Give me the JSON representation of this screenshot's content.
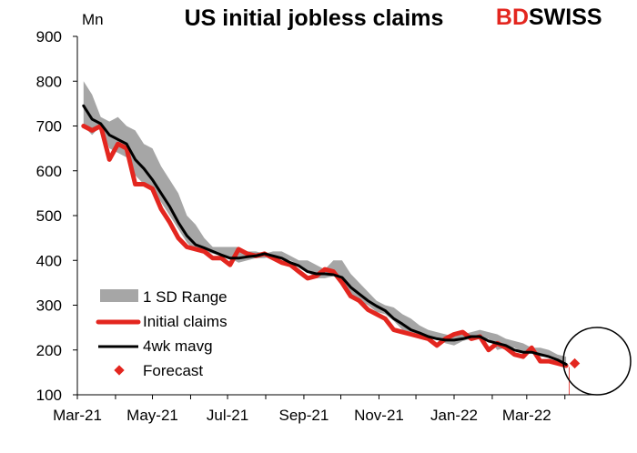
{
  "chart_data": {
    "type": "line",
    "title": "US initial jobless claims",
    "ylabel": "Mn",
    "ylim": [
      100,
      900
    ],
    "y_ticks": [
      100,
      200,
      300,
      400,
      500,
      600,
      700,
      800,
      900
    ],
    "x_tick_labels": [
      "Mar-21",
      "May-21",
      "Jul-21",
      "Sep-21",
      "Nov-21",
      "Jan-22",
      "Mar-22"
    ],
    "x_tick_dates": [
      "2021-03-01",
      "2021-05-01",
      "2021-07-01",
      "2021-09-01",
      "2021-11-01",
      "2022-01-01",
      "2022-03-01"
    ],
    "x_range": [
      "2021-03-01",
      "2022-04-30"
    ],
    "grid": false,
    "legend_position": "lower-left",
    "logo": {
      "part1": "BD",
      "part2": "SWISS"
    },
    "annotation": "circle around forecast point",
    "series": [
      {
        "name": "1 SD Range",
        "kind": "band",
        "color": "#a6a6a6",
        "x": [
          "2021-03-06",
          "2021-03-13",
          "2021-03-20",
          "2021-03-27",
          "2021-04-03",
          "2021-04-10",
          "2021-04-17",
          "2021-04-24",
          "2021-05-01",
          "2021-05-08",
          "2021-05-15",
          "2021-05-22",
          "2021-05-29",
          "2021-06-05",
          "2021-06-12",
          "2021-06-19",
          "2021-06-26",
          "2021-07-03",
          "2021-07-10",
          "2021-07-17",
          "2021-07-24",
          "2021-07-31",
          "2021-08-07",
          "2021-08-14",
          "2021-08-21",
          "2021-08-28",
          "2021-09-04",
          "2021-09-11",
          "2021-09-18",
          "2021-09-25",
          "2021-10-02",
          "2021-10-09",
          "2021-10-16",
          "2021-10-23",
          "2021-10-30",
          "2021-11-06",
          "2021-11-13",
          "2021-11-20",
          "2021-11-27",
          "2021-12-04",
          "2021-12-11",
          "2021-12-18",
          "2021-12-25",
          "2022-01-01",
          "2022-01-08",
          "2022-01-15",
          "2022-01-22",
          "2022-01-29",
          "2022-02-05",
          "2022-02-12",
          "2022-02-19",
          "2022-02-26",
          "2022-03-05",
          "2022-03-12",
          "2022-03-19",
          "2022-03-26",
          "2022-04-02"
        ],
        "low": [
          700,
          680,
          700,
          650,
          640,
          630,
          590,
          570,
          560,
          530,
          500,
          470,
          440,
          420,
          420,
          415,
          410,
          405,
          395,
          400,
          405,
          405,
          410,
          405,
          400,
          390,
          375,
          360,
          360,
          365,
          360,
          325,
          310,
          300,
          285,
          280,
          265,
          245,
          240,
          235,
          225,
          225,
          215,
          210,
          220,
          225,
          225,
          225,
          200,
          205,
          205,
          195,
          195,
          185,
          185,
          175,
          168
        ],
        "high": [
          800,
          770,
          720,
          710,
          720,
          700,
          690,
          660,
          650,
          610,
          580,
          550,
          500,
          480,
          450,
          430,
          430,
          430,
          430,
          420,
          420,
          415,
          420,
          420,
          410,
          400,
          400,
          390,
          380,
          400,
          400,
          370,
          350,
          330,
          310,
          300,
          295,
          280,
          270,
          255,
          245,
          240,
          235,
          230,
          235,
          240,
          245,
          240,
          235,
          225,
          220,
          215,
          205,
          205,
          200,
          190,
          185
        ]
      },
      {
        "name": "Initial claims",
        "kind": "line",
        "color": "#e3261f",
        "x": [
          "2021-03-06",
          "2021-03-13",
          "2021-03-20",
          "2021-03-27",
          "2021-04-03",
          "2021-04-10",
          "2021-04-17",
          "2021-04-24",
          "2021-05-01",
          "2021-05-08",
          "2021-05-15",
          "2021-05-22",
          "2021-05-29",
          "2021-06-05",
          "2021-06-12",
          "2021-06-19",
          "2021-06-26",
          "2021-07-03",
          "2021-07-10",
          "2021-07-17",
          "2021-07-24",
          "2021-07-31",
          "2021-08-07",
          "2021-08-14",
          "2021-08-21",
          "2021-08-28",
          "2021-09-04",
          "2021-09-11",
          "2021-09-18",
          "2021-09-25",
          "2021-10-02",
          "2021-10-09",
          "2021-10-16",
          "2021-10-23",
          "2021-10-30",
          "2021-11-06",
          "2021-11-13",
          "2021-11-20",
          "2021-11-27",
          "2021-12-04",
          "2021-12-11",
          "2021-12-18",
          "2021-12-25",
          "2022-01-01",
          "2022-01-08",
          "2022-01-15",
          "2022-01-22",
          "2022-01-29",
          "2022-02-05",
          "2022-02-12",
          "2022-02-19",
          "2022-02-26",
          "2022-03-05",
          "2022-03-12",
          "2022-03-19",
          "2022-03-26",
          "2022-04-02"
        ],
        "values": [
          700,
          690,
          700,
          625,
          660,
          650,
          570,
          570,
          560,
          515,
          485,
          450,
          430,
          425,
          420,
          405,
          405,
          390,
          425,
          415,
          410,
          415,
          405,
          395,
          390,
          375,
          360,
          365,
          380,
          375,
          350,
          320,
          310,
          290,
          280,
          270,
          245,
          240,
          235,
          230,
          225,
          210,
          225,
          235,
          240,
          225,
          230,
          200,
          215,
          205,
          190,
          185,
          205,
          175,
          175,
          170,
          165
        ]
      },
      {
        "name": "4wk mavg",
        "kind": "line",
        "color": "#000000",
        "x": [
          "2021-03-06",
          "2021-03-13",
          "2021-03-20",
          "2021-03-27",
          "2021-04-03",
          "2021-04-10",
          "2021-04-17",
          "2021-04-24",
          "2021-05-01",
          "2021-05-08",
          "2021-05-15",
          "2021-05-22",
          "2021-05-29",
          "2021-06-05",
          "2021-06-12",
          "2021-06-19",
          "2021-06-26",
          "2021-07-03",
          "2021-07-10",
          "2021-07-17",
          "2021-07-24",
          "2021-07-31",
          "2021-08-07",
          "2021-08-14",
          "2021-08-21",
          "2021-08-28",
          "2021-09-04",
          "2021-09-11",
          "2021-09-18",
          "2021-09-25",
          "2021-10-02",
          "2021-10-09",
          "2021-10-16",
          "2021-10-23",
          "2021-10-30",
          "2021-11-06",
          "2021-11-13",
          "2021-11-20",
          "2021-11-27",
          "2021-12-04",
          "2021-12-11",
          "2021-12-18",
          "2021-12-25",
          "2022-01-01",
          "2022-01-08",
          "2022-01-15",
          "2022-01-22",
          "2022-01-29",
          "2022-02-05",
          "2022-02-12",
          "2022-02-19",
          "2022-02-26",
          "2022-03-05",
          "2022-03-12",
          "2022-03-19",
          "2022-03-26",
          "2022-04-02"
        ],
        "values": [
          745,
          715,
          705,
          680,
          670,
          660,
          625,
          605,
          580,
          550,
          520,
          485,
          455,
          435,
          428,
          420,
          412,
          405,
          405,
          408,
          410,
          415,
          410,
          405,
          395,
          388,
          375,
          370,
          370,
          368,
          362,
          340,
          325,
          310,
          298,
          288,
          270,
          258,
          245,
          238,
          230,
          225,
          222,
          222,
          225,
          230,
          230,
          220,
          215,
          210,
          200,
          195,
          195,
          190,
          185,
          178,
          168
        ]
      },
      {
        "name": "Forecast",
        "kind": "point",
        "color": "#e3261f",
        "x": [
          "2022-04-09"
        ],
        "values": [
          170
        ]
      }
    ]
  }
}
